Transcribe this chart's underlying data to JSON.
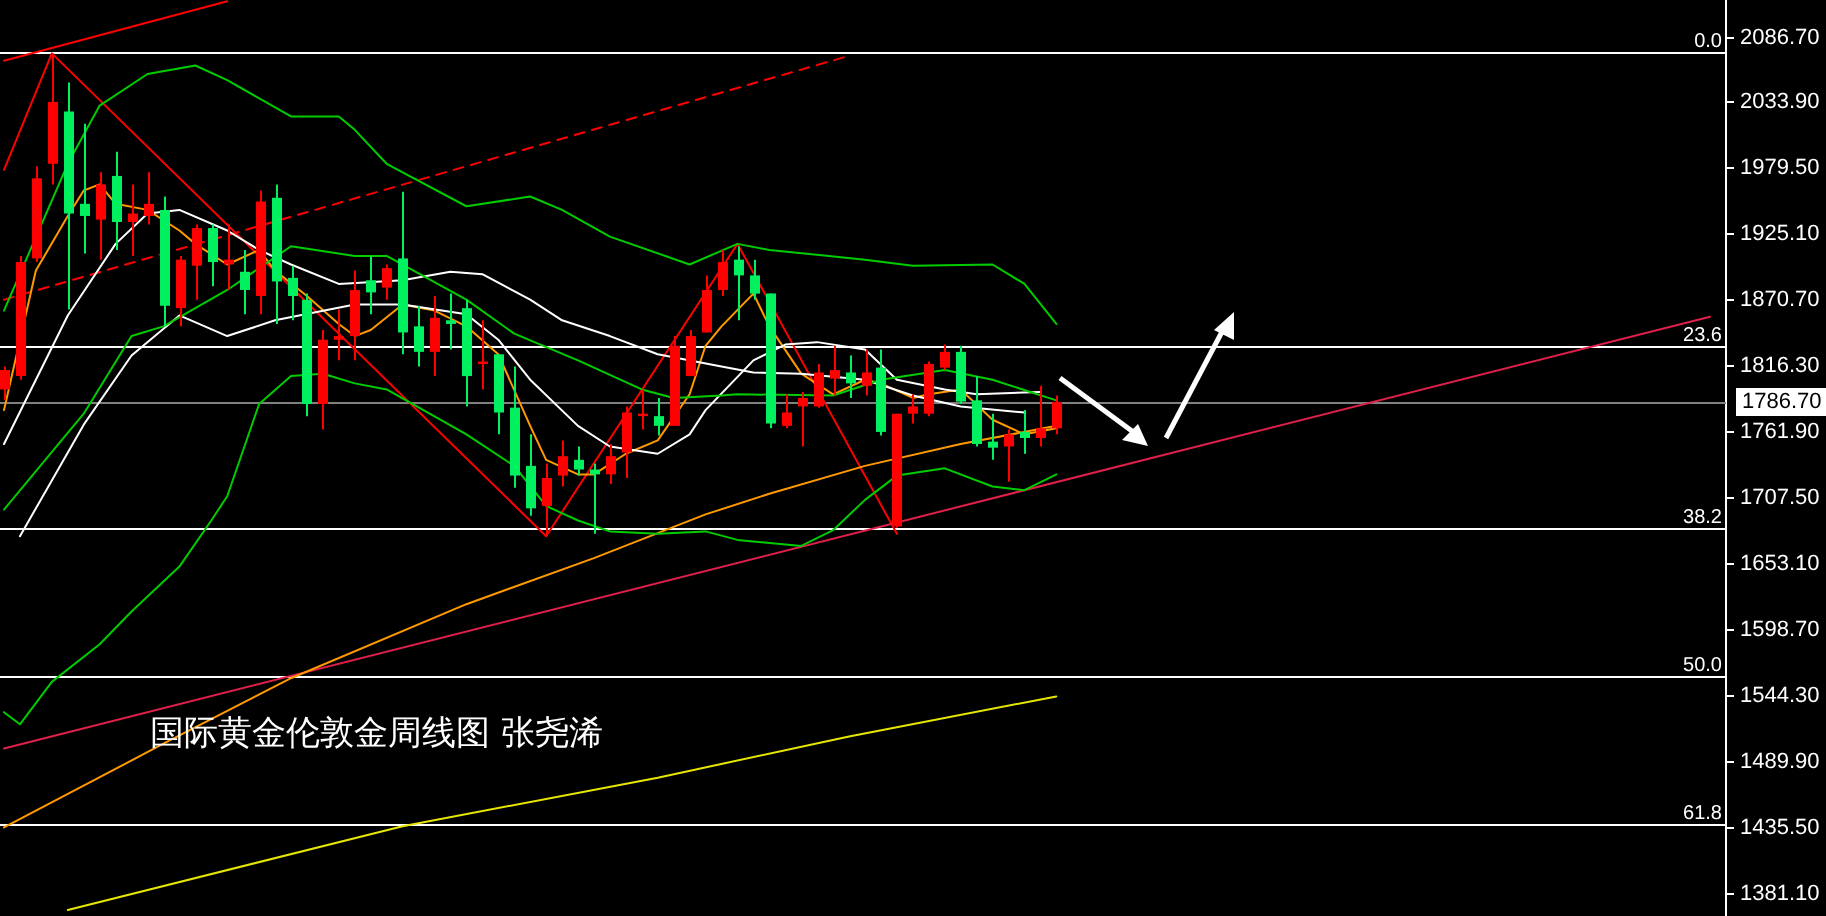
{
  "chart_data": {
    "type": "candlestick",
    "title": "国际黄金伦敦金周线图 张尧浠",
    "tick_labels": "y",
    "marker": "none",
    "categories": [
      null,
      null,
      null,
      null,
      null,
      null,
      null,
      null,
      null,
      null,
      null,
      null,
      null,
      null,
      null,
      null,
      null,
      null,
      null,
      null,
      null,
      null,
      null,
      null,
      null,
      null,
      null,
      null,
      null,
      null,
      null,
      null,
      null,
      null,
      null,
      null,
      null,
      null,
      null,
      null,
      null,
      null,
      null,
      null,
      null,
      null,
      null,
      null,
      null,
      null,
      null,
      null,
      null,
      null,
      null,
      null,
      null,
      null,
      null,
      null,
      null,
      null,
      null,
      null,
      null,
      null,
      null,
      null,
      null,
      null,
      null,
      null,
      null,
      null,
      null,
      null,
      null,
      null,
      null,
      null,
      null,
      null,
      null,
      null,
      null,
      null,
      null,
      null,
      null,
      null,
      null,
      null,
      null,
      null,
      null,
      null,
      null,
      null,
      null,
      null,
      null,
      null,
      null,
      null,
      null,
      null,
      null,
      null,
      null
    ],
    "ohlc": [
      [
        1797,
        1816,
        1788,
        1813
      ],
      [
        1808,
        1907,
        1805,
        1902
      ],
      [
        1905,
        1981,
        1902,
        1971
      ],
      [
        1983,
        2074,
        1966,
        2034
      ],
      [
        2026,
        2050,
        1863,
        1942
      ],
      [
        1950,
        2016,
        1909,
        1940
      ],
      [
        1937,
        1976,
        1904,
        1966
      ],
      [
        1973,
        1993,
        1912,
        1935
      ],
      [
        1935,
        1966,
        1907,
        1942
      ],
      [
        1940,
        1976,
        1933,
        1950
      ],
      [
        1945,
        1956,
        1849,
        1866
      ],
      [
        1864,
        1907,
        1849,
        1904
      ],
      [
        1899,
        1933,
        1871,
        1930
      ],
      [
        1930,
        1933,
        1882,
        1902
      ],
      [
        1900,
        1933,
        1879,
        1904
      ],
      [
        1894,
        1912,
        1859,
        1879
      ],
      [
        1874,
        1961,
        1859,
        1952
      ],
      [
        1955,
        1966,
        1851,
        1886
      ],
      [
        1889,
        1899,
        1854,
        1874
      ],
      [
        1871,
        1876,
        1775,
        1785
      ],
      [
        1785,
        1846,
        1764,
        1838
      ],
      [
        1838,
        1863,
        1821,
        1841
      ],
      [
        1841,
        1895,
        1821,
        1879
      ],
      [
        1887,
        1907,
        1859,
        1877
      ],
      [
        1881,
        1900,
        1871,
        1897
      ],
      [
        1905,
        1960,
        1826,
        1844
      ],
      [
        1849,
        1866,
        1816,
        1828
      ],
      [
        1828,
        1874,
        1808,
        1856
      ],
      [
        1854,
        1876,
        1830,
        1851
      ],
      [
        1864,
        1871,
        1783,
        1808
      ],
      [
        1818,
        1854,
        1797,
        1820
      ],
      [
        1826,
        1826,
        1760,
        1778
      ],
      [
        1782,
        1816,
        1716,
        1726
      ],
      [
        1734,
        1760,
        1693,
        1699
      ],
      [
        1701,
        1736,
        1676,
        1724
      ],
      [
        1726,
        1755,
        1717,
        1742
      ],
      [
        1739,
        1750,
        1726,
        1731
      ],
      [
        1731,
        1736,
        1678,
        1727
      ],
      [
        1727,
        1752,
        1719,
        1742
      ],
      [
        1745,
        1783,
        1724,
        1778
      ],
      [
        1775,
        1797,
        1764,
        1777
      ],
      [
        1775,
        1790,
        1759,
        1767
      ],
      [
        1767,
        1841,
        1767,
        1833
      ],
      [
        1808,
        1846,
        1808,
        1841
      ],
      [
        1844,
        1891,
        1844,
        1879
      ],
      [
        1879,
        1912,
        1874,
        1902
      ],
      [
        1904,
        1915,
        1854,
        1891
      ],
      [
        1891,
        1904,
        1871,
        1876
      ],
      [
        1876,
        1876,
        1765,
        1769
      ],
      [
        1767,
        1793,
        1765,
        1778
      ],
      [
        1783,
        1795,
        1750,
        1790
      ],
      [
        1783,
        1818,
        1782,
        1811
      ],
      [
        1806,
        1833,
        1792,
        1813
      ],
      [
        1811,
        1825,
        1790,
        1802
      ],
      [
        1800,
        1830,
        1792,
        1811
      ],
      [
        1815,
        1830,
        1759,
        1762
      ],
      [
        1684,
        1777,
        1683,
        1777
      ],
      [
        1777,
        1793,
        1769,
        1783
      ],
      [
        1777,
        1820,
        1775,
        1818
      ],
      [
        1815,
        1834,
        1813,
        1828
      ],
      [
        1828,
        1833,
        1785,
        1787
      ],
      [
        1788,
        1808,
        1750,
        1752
      ],
      [
        1754,
        1777,
        1739,
        1749
      ],
      [
        1750,
        1764,
        1721,
        1760
      ],
      [
        1762,
        1780,
        1744,
        1757
      ],
      [
        1757,
        1800,
        1750,
        1765
      ],
      [
        1765,
        1792,
        1760,
        1786.7
      ],
      null,
      null,
      null,
      null,
      null,
      null,
      null,
      null,
      null,
      null,
      null,
      null,
      null,
      null,
      null,
      null,
      null,
      null,
      null,
      null,
      null,
      null,
      null,
      null,
      null,
      null,
      null,
      null,
      null,
      null,
      null,
      null,
      null,
      null,
      null,
      null,
      null,
      null,
      null,
      null,
      null,
      null
    ],
    "colors": [
      "#ff0000",
      "#ff0000",
      "#ff0000",
      "#ff0000",
      "#00f060",
      "#00f060",
      "#ff0000",
      "#00f060",
      "#ff0000",
      "#ff0000",
      "#00f060",
      "#ff0000",
      "#ff0000",
      "#00f060",
      "#ff0000",
      "#00f060",
      "#ff0000",
      "#00f060",
      "#00f060",
      "#00f060",
      "#ff0000",
      "#ff0000",
      "#ff0000",
      "#00f060",
      "#ff0000",
      "#00f060",
      "#00f060",
      "#ff0000",
      "#00f060",
      "#00f060",
      "#ff0000",
      "#00f060",
      "#00f060",
      "#00f060",
      "#ff0000",
      "#ff0000",
      "#00f060",
      "#00f060",
      "#ff0000",
      "#ff0000",
      "#ff0000",
      "#00f060",
      "#ff0000",
      "#ff0000",
      "#ff0000",
      "#ff0000",
      "#00f060",
      "#00f060",
      "#00f060",
      "#ff0000",
      "#ff0000",
      "#ff0000",
      "#ff0000",
      "#00f060",
      "#ff0000",
      "#00f060",
      "#ff0000",
      "#ff0000",
      "#ff0000",
      "#ff0000",
      "#00f060",
      "#00f060",
      "#00f060",
      "#ff0000",
      "#00f060",
      "#ff0000",
      "#ff0000",
      null,
      null,
      null,
      null,
      null,
      null,
      null,
      null,
      null,
      null,
      null,
      null,
      null,
      null,
      null,
      null,
      null,
      null,
      null,
      null,
      null,
      null,
      null,
      null,
      null,
      null,
      null,
      null,
      null,
      null,
      null,
      null,
      null,
      null,
      null,
      null,
      null,
      null,
      null,
      null,
      null,
      null
    ],
    "series": [
      {
        "type": "line",
        "color": "#00cc00",
        "values": [
          1862,
          null,
          null,
          null,
          1983,
          null,
          2031,
          null,
          null,
          2057,
          null,
          null,
          2064,
          null,
          2052,
          null,
          null,
          null,
          2022,
          null,
          null,
          2022,
          2011,
          null,
          1983,
          null,
          null,
          null,
          null,
          1948,
          null,
          null,
          null,
          1956,
          null,
          1945,
          null,
          null,
          1923,
          null,
          null,
          null,
          null,
          1900,
          null,
          null,
          1917,
          null,
          1912,
          null,
          null,
          null,
          null,
          null,
          1904,
          null,
          null,
          1899,
          null,
          null,
          null,
          null,
          1900,
          null,
          1884,
          null,
          1851,
          null,
          null,
          null,
          null,
          null,
          null,
          null,
          null,
          null,
          null,
          null,
          null,
          null,
          null,
          null,
          null,
          null,
          null,
          null,
          null,
          null,
          null,
          null,
          null,
          null,
          null,
          null,
          null,
          null,
          null,
          null,
          null,
          null,
          null,
          null,
          null,
          null,
          null,
          null,
          null,
          null,
          null
        ]
      },
      {
        "type": "line",
        "color": "#00cc00",
        "values": [
          1698,
          null,
          null,
          null,
          null,
          1777,
          null,
          null,
          1841,
          null,
          1849,
          null,
          null,
          null,
          1879,
          null,
          null,
          null,
          1915,
          null,
          null,
          null,
          1907,
          null,
          1907,
          null,
          null,
          null,
          null,
          1871,
          null,
          null,
          1843,
          null,
          null,
          null,
          1821,
          null,
          null,
          null,
          1797,
          null,
          1790,
          null,
          null,
          1792,
          1793,
          null,
          null,
          null,
          null,
          null,
          1792,
          null,
          null,
          1805,
          null,
          null,
          null,
          1813,
          null,
          null,
          1805,
          null,
          null,
          null,
          1788,
          null,
          null,
          null,
          null,
          null,
          null,
          null,
          null,
          null,
          null,
          null,
          null,
          null,
          null,
          null,
          null,
          null,
          null,
          null,
          null,
          null,
          null,
          null,
          null,
          null,
          null,
          null,
          null,
          null,
          null,
          null,
          null,
          null,
          null,
          null,
          null,
          null,
          null,
          null,
          null,
          null,
          null
        ]
      },
      {
        "type": "line",
        "color": "#00cc00",
        "values": [
          1531,
          1521,
          null,
          1556,
          null,
          null,
          1587,
          null,
          1614,
          null,
          null,
          1651,
          null,
          1689,
          1709,
          null,
          1785,
          null,
          1808,
          null,
          1810,
          null,
          1802,
          null,
          1797,
          null,
          null,
          null,
          null,
          1760,
          null,
          null,
          1734,
          null,
          1701,
          null,
          1689,
          null,
          1680,
          null,
          null,
          1678,
          null,
          null,
          1680,
          null,
          1673,
          null,
          null,
          null,
          1668,
          null,
          1681,
          null,
          1706,
          null,
          1726,
          null,
          null,
          1732,
          null,
          null,
          1717,
          null,
          1714,
          null,
          1727,
          null,
          null,
          null,
          null,
          null,
          null,
          null,
          null,
          null,
          null,
          null,
          null,
          null,
          null,
          null,
          null,
          null,
          null,
          null,
          null,
          null,
          null,
          null,
          null,
          null,
          null,
          null,
          null,
          null,
          null,
          null,
          null,
          null,
          null,
          null,
          null,
          null,
          null,
          null,
          null,
          null,
          null
        ]
      },
      {
        "type": "line",
        "color": "#ffffff",
        "values": [
          1752,
          null,
          null,
          null,
          1858,
          null,
          null,
          1917,
          null,
          1942,
          null,
          1945,
          null,
          null,
          1928,
          null,
          1912,
          null,
          1900,
          null,
          null,
          1884,
          null,
          null,
          null,
          1887,
          null,
          null,
          1894,
          null,
          1892,
          null,
          null,
          1871,
          null,
          1854,
          null,
          null,
          1841,
          null,
          null,
          1826,
          null,
          null,
          null,
          1816,
          null,
          1811,
          null,
          null,
          1810,
          null,
          null,
          null,
          1805,
          null,
          null,
          1792,
          null,
          null,
          1783,
          null,
          null,
          null,
          1778,
          null,
          null,
          null,
          null,
          null,
          null,
          null,
          null,
          null,
          null,
          null,
          null,
          null,
          null,
          null,
          null,
          null,
          null,
          null,
          null,
          null,
          null,
          null,
          null,
          null,
          null,
          null,
          null,
          null,
          null,
          null,
          null,
          null,
          null,
          null,
          null,
          null,
          null,
          null,
          null,
          null,
          null,
          null,
          null
        ]
      },
      {
        "type": "line",
        "color": "#ffffff",
        "values": [
          null,
          1676,
          null,
          null,
          null,
          1768,
          null,
          null,
          1825,
          null,
          null,
          1858,
          null,
          null,
          1841,
          null,
          null,
          1854,
          null,
          null,
          null,
          null,
          1867,
          null,
          null,
          1867,
          null,
          null,
          null,
          1859,
          null,
          1838,
          null,
          1805,
          null,
          null,
          1767,
          null,
          1750,
          null,
          null,
          1744,
          null,
          1760,
          1780,
          null,
          null,
          1821,
          null,
          1834,
          null,
          1836,
          null,
          null,
          1830,
          null,
          1805,
          null,
          null,
          1797,
          null,
          1793,
          null,
          null,
          null,
          1795,
          null,
          null,
          null,
          null,
          null,
          null,
          null,
          null,
          null,
          null,
          null,
          null,
          null,
          null,
          null,
          null,
          null,
          null,
          null,
          null,
          null,
          null,
          null,
          null,
          null,
          null,
          null,
          null,
          null,
          null,
          null,
          null,
          null,
          null,
          null,
          null,
          null,
          null,
          null,
          null,
          null,
          null,
          null
        ]
      },
      {
        "type": "line",
        "color": "#ff9900",
        "values": [
          1780,
          null,
          1895,
          null,
          1940,
          1961,
          1966,
          1950,
          null,
          1945,
          null,
          1928,
          1917,
          null,
          1900,
          null,
          1912,
          1895,
          null,
          1874,
          null,
          1851,
          1841,
          1846,
          null,
          1867,
          null,
          1862,
          null,
          1849,
          null,
          1826,
          null,
          1767,
          1739,
          null,
          1727,
          1727,
          null,
          1744,
          null,
          1755,
          null,
          1793,
          1833,
          1849,
          null,
          1876,
          1849,
          null,
          1810,
          null,
          1793,
          null,
          1805,
          1802,
          null,
          1790,
          1793,
          null,
          1797,
          null,
          1772,
          null,
          1760,
          null,
          1765,
          null,
          null,
          null,
          null,
          null,
          null,
          null,
          null,
          null,
          null,
          null,
          null,
          null,
          null,
          null,
          null,
          null,
          null,
          null,
          null,
          null,
          null,
          null,
          null,
          null,
          null,
          null,
          null,
          null,
          null,
          null,
          null,
          null,
          null,
          null,
          null,
          null,
          null,
          null,
          null,
          null,
          null
        ]
      },
      {
        "type": "line",
        "color": "#ff9900",
        "values": [
          1436,
          null,
          null,
          null,
          null,
          null,
          null,
          null,
          null,
          null,
          1505,
          null,
          null,
          null,
          null,
          null,
          null,
          null,
          1559,
          null,
          null,
          null,
          null,
          null,
          null,
          null,
          null,
          null,
          null,
          1620,
          null,
          null,
          null,
          null,
          null,
          null,
          null,
          1658,
          null,
          null,
          null,
          null,
          null,
          null,
          1694,
          null,
          null,
          null,
          1711,
          null,
          null,
          null,
          null,
          null,
          1734,
          null,
          null,
          null,
          null,
          null,
          1752,
          null,
          null,
          null,
          null,
          null,
          1767,
          null,
          null,
          null,
          null,
          null,
          null,
          null,
          null,
          null,
          null,
          null,
          null,
          null,
          null,
          null,
          null,
          null,
          null,
          null,
          null,
          null,
          null,
          null,
          null,
          null,
          null,
          null,
          null,
          null,
          null,
          null,
          null,
          null,
          null,
          null,
          null,
          null,
          null,
          null,
          null,
          null,
          null
        ]
      },
      {
        "type": "line",
        "color": "#e6e600",
        "values": [
          null,
          null,
          null,
          null,
          1368,
          null,
          null,
          null,
          null,
          null,
          null,
          null,
          null,
          null,
          null,
          null,
          null,
          null,
          null,
          null,
          null,
          null,
          null,
          null,
          null,
          1437,
          null,
          null,
          null,
          null,
          null,
          null,
          null,
          null,
          null,
          null,
          null,
          null,
          null,
          null,
          null,
          1477,
          null,
          null,
          null,
          null,
          null,
          null,
          null,
          null,
          null,
          null,
          null,
          1511,
          null,
          null,
          null,
          null,
          null,
          null,
          null,
          null,
          null,
          null,
          null,
          null,
          1544,
          null,
          null,
          null,
          null,
          null,
          null,
          null,
          null,
          null,
          null,
          null,
          null,
          null,
          null,
          null,
          null,
          null,
          null,
          null,
          null,
          null,
          null,
          null,
          null,
          null,
          null,
          null,
          null,
          null,
          null,
          null,
          null,
          null,
          null,
          null,
          null,
          null,
          null,
          null,
          null,
          null,
          null
        ]
      },
      {
        "type": "line",
        "color": "#e0204a",
        "values": [
          1501,
          null,
          null,
          null,
          null,
          null,
          null,
          null,
          null,
          null,
          null,
          null,
          null,
          null,
          null,
          null,
          null,
          null,
          null,
          null,
          null,
          null,
          null,
          null,
          null,
          null,
          null,
          null,
          null,
          null,
          null,
          null,
          null,
          null,
          null,
          null,
          null,
          null,
          null,
          null,
          null,
          null,
          null,
          null,
          null,
          null,
          null,
          null,
          null,
          null,
          null,
          null,
          null,
          null,
          null,
          null,
          null,
          null,
          null,
          null,
          null,
          null,
          null,
          null,
          null,
          null,
          null,
          null,
          null,
          null,
          null,
          null,
          null,
          null,
          null,
          null,
          null,
          null,
          null,
          null,
          null,
          null,
          null,
          null,
          null,
          null,
          null,
          null,
          null,
          null,
          null,
          null,
          null,
          null,
          null,
          null,
          null,
          null,
          null,
          null,
          null,
          null,
          null,
          null,
          null,
          null,
          null,
          1857,
          null
        ]
      },
      {
        "type": "line",
        "color": "#ff0000",
        "line_style": "dashed",
        "values": [
          1871,
          null,
          null,
          null,
          null,
          null,
          null,
          null,
          null,
          null,
          null,
          null,
          null,
          null,
          null,
          null,
          null,
          null,
          null,
          null,
          null,
          null,
          null,
          null,
          null,
          null,
          null,
          null,
          null,
          null,
          null,
          null,
          null,
          null,
          null,
          null,
          null,
          null,
          null,
          null,
          null,
          null,
          null,
          null,
          null,
          null,
          null,
          null,
          null,
          null,
          null,
          null,
          null,
          2072,
          null,
          null,
          null,
          null,
          null,
          null,
          null,
          null,
          null,
          null,
          null,
          null,
          null,
          null,
          null,
          null,
          null,
          null,
          null,
          null,
          null,
          null,
          null,
          null,
          null,
          null,
          null,
          null,
          null,
          null,
          null,
          null,
          null,
          null,
          null,
          null,
          null,
          null,
          null,
          null,
          null,
          null,
          null,
          null,
          null,
          null,
          null,
          null,
          null,
          null,
          null,
          null,
          null,
          null,
          null
        ]
      },
      {
        "type": "line",
        "color": "#ff0000",
        "values": [
          2068,
          null,
          null,
          null,
          null,
          null,
          null,
          null,
          null,
          null,
          null,
          null,
          null,
          null,
          2117,
          null,
          null,
          null,
          null,
          null,
          null,
          null,
          null,
          null,
          null,
          null,
          null,
          null,
          null,
          null,
          null,
          null,
          null,
          null,
          null,
          null,
          null,
          null,
          null,
          null,
          null,
          null,
          null,
          null,
          null,
          null,
          null,
          null,
          null,
          null,
          null,
          null,
          null,
          null,
          null,
          null,
          null,
          null,
          null,
          null,
          null,
          null,
          null,
          null,
          null,
          null,
          null,
          null,
          null,
          null,
          null,
          null,
          null,
          null,
          null,
          null,
          null,
          null,
          null,
          null,
          null,
          null,
          null,
          null,
          null,
          null,
          null,
          null,
          null,
          null,
          null,
          null,
          null,
          null,
          null,
          null,
          null,
          null,
          null,
          null,
          null,
          null,
          null,
          null,
          null,
          null,
          null,
          null,
          null
        ]
      },
      {
        "type": "line",
        "color": "#ff0000",
        "values": [
          1978,
          null,
          null,
          2074,
          null,
          null,
          null,
          null,
          null,
          null,
          null,
          null,
          null,
          null,
          null,
          null,
          null,
          null,
          null,
          null,
          null,
          null,
          null,
          null,
          null,
          null,
          null,
          null,
          null,
          null,
          null,
          null,
          null,
          null,
          1676,
          null,
          null,
          null,
          null,
          null,
          null,
          null,
          null,
          null,
          null,
          null,
          1917,
          null,
          null,
          null,
          null,
          null,
          null,
          null,
          null,
          null,
          1678,
          null,
          null,
          null,
          null,
          null,
          null,
          null,
          null,
          null,
          null,
          null,
          null,
          null,
          null,
          null,
          null,
          null,
          null,
          null,
          null,
          null,
          null,
          null,
          null,
          null,
          null,
          null,
          null,
          null,
          null,
          null,
          null,
          null,
          null,
          null,
          null,
          null,
          null,
          null,
          null,
          null,
          null,
          null,
          null,
          null,
          null,
          null,
          null,
          null,
          null,
          null,
          null
        ]
      }
    ],
    "ylim": [
      1363,
      2118
    ],
    "yticks": [
      {
        "value": 2086.7,
        "label": "2086.70"
      },
      {
        "value": 2033.9,
        "label": "2033.90"
      },
      {
        "value": 1979.5,
        "label": "1979.50"
      },
      {
        "value": 1925.1,
        "label": "1925.10"
      },
      {
        "value": 1870.7,
        "label": "1870.70"
      },
      {
        "value": 1816.3,
        "label": "1816.30"
      },
      {
        "value": 1761.9,
        "label": "1761.90"
      },
      {
        "value": 1707.5,
        "label": "1707.50"
      },
      {
        "value": 1653.1,
        "label": "1653.10"
      },
      {
        "value": 1598.7,
        "label": "1598.70"
      },
      {
        "value": 1544.3,
        "label": "1544.30"
      },
      {
        "value": 1489.9,
        "label": "1489.90"
      },
      {
        "value": 1435.5,
        "label": "1435.50"
      },
      {
        "value": 1381.1,
        "label": "1381.10"
      }
    ],
    "ref_lines": [
      {
        "axis": "y",
        "value": 2075,
        "color": "#ffffff"
      },
      {
        "axis": "y",
        "value": 1833,
        "color": "#ffffff"
      },
      {
        "axis": "y",
        "value": 1683,
        "color": "#ffffff"
      },
      {
        "axis": "y",
        "value": 1561,
        "color": "#ffffff"
      },
      {
        "axis": "y",
        "value": 1439,
        "color": "#ffffff"
      },
      {
        "axis": "y",
        "value": 1786.7,
        "label": "1786.70",
        "color": "#808080"
      }
    ],
    "annotations": [
      {
        "text": "0.0",
        "y": 2075
      },
      {
        "text": "23.6",
        "y": 1833
      },
      {
        "text": "38.2",
        "y": 1683
      },
      {
        "text": "50.0",
        "y": 1561
      },
      {
        "text": "61.8",
        "y": 1439
      }
    ]
  }
}
